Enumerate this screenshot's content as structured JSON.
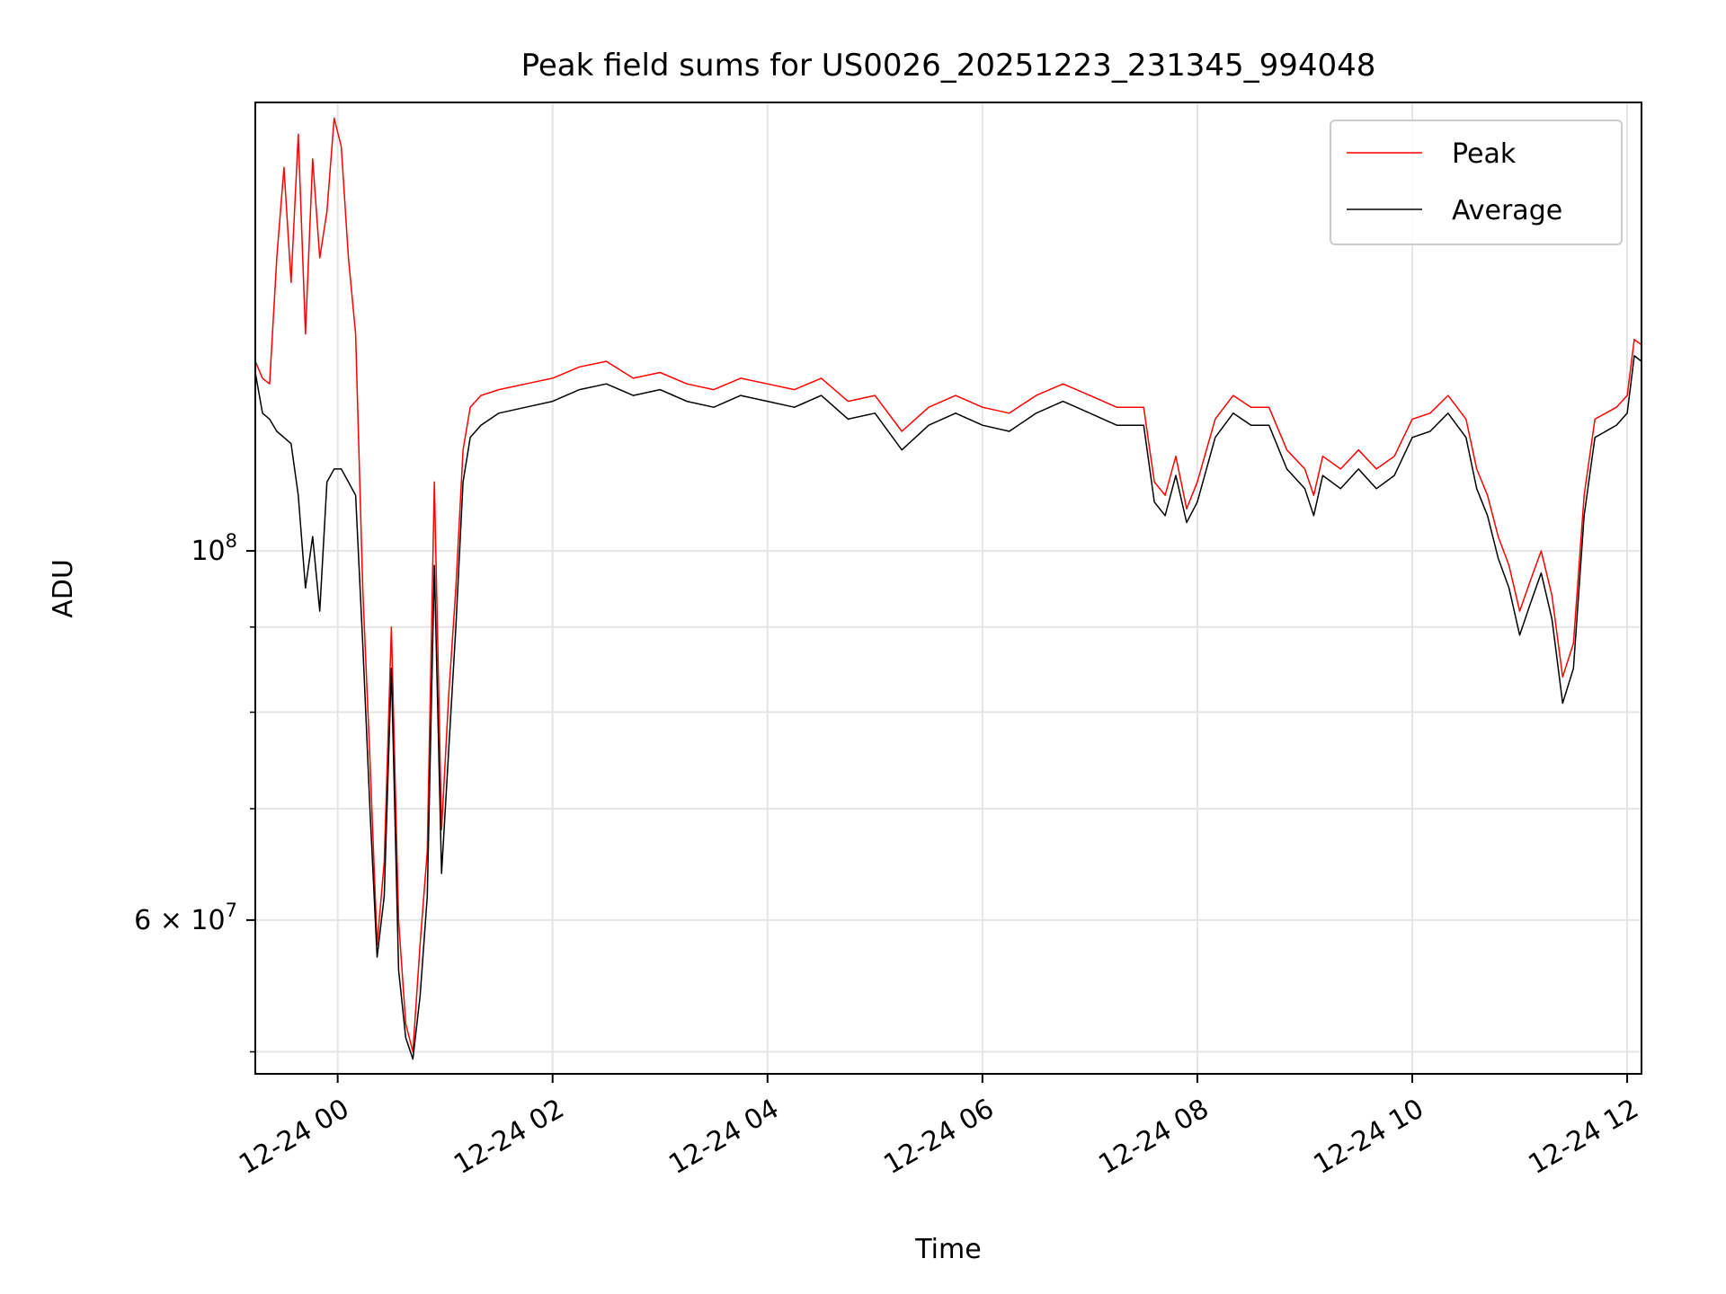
{
  "chart_data": {
    "type": "line",
    "title": "Peak field sums for US0026_20251223_231345_994048",
    "xlabel": "Time",
    "ylabel": "ADU",
    "x_scale": "time",
    "y_scale": "log",
    "xlim": [
      "12-23 23:14",
      "12-24 12:08"
    ],
    "ylim": [
      48500000,
      186000000
    ],
    "grid": true,
    "legend_position": "top-right",
    "x_ticks": [
      {
        "value": "12-24 00:00",
        "label": "12-24 00"
      },
      {
        "value": "12-24 02:00",
        "label": "12-24 02"
      },
      {
        "value": "12-24 04:00",
        "label": "12-24 04"
      },
      {
        "value": "12-24 06:00",
        "label": "12-24 06"
      },
      {
        "value": "12-24 08:00",
        "label": "12-24 08"
      },
      {
        "value": "12-24 10:00",
        "label": "12-24 10"
      },
      {
        "value": "12-24 12:00",
        "label": "12-24 12"
      }
    ],
    "y_major_ticks": [
      {
        "value": 60000000,
        "label_base": "6 × 10",
        "label_exp": "7"
      },
      {
        "value": 100000000,
        "label_base": "10",
        "label_exp": "8"
      }
    ],
    "y_minor_ticks": [
      50000000,
      70000000,
      80000000,
      90000000
    ],
    "series": [
      {
        "name": "Peak",
        "color": "#ff0000",
        "x": [
          "12-23 23:14",
          "12-23 23:18",
          "12-23 23:22",
          "12-23 23:26",
          "12-23 23:30",
          "12-23 23:34",
          "12-23 23:38",
          "12-23 23:42",
          "12-23 23:46",
          "12-23 23:50",
          "12-23 23:54",
          "12-23 23:58",
          "12-24 00:02",
          "12-24 00:06",
          "12-24 00:10",
          "12-24 00:14",
          "12-24 00:18",
          "12-24 00:22",
          "12-24 00:26",
          "12-24 00:30",
          "12-24 00:34",
          "12-24 00:38",
          "12-24 00:42",
          "12-24 00:46",
          "12-24 00:50",
          "12-24 00:54",
          "12-24 00:58",
          "12-24 01:02",
          "12-24 01:06",
          "12-24 01:10",
          "12-24 01:14",
          "12-24 01:20",
          "12-24 01:30",
          "12-24 01:45",
          "12-24 02:00",
          "12-24 02:15",
          "12-24 02:30",
          "12-24 02:45",
          "12-24 03:00",
          "12-24 03:15",
          "12-24 03:30",
          "12-24 03:45",
          "12-24 04:00",
          "12-24 04:15",
          "12-24 04:30",
          "12-24 04:45",
          "12-24 05:00",
          "12-24 05:15",
          "12-24 05:30",
          "12-24 05:45",
          "12-24 06:00",
          "12-24 06:15",
          "12-24 06:30",
          "12-24 06:45",
          "12-24 07:00",
          "12-24 07:15",
          "12-24 07:30",
          "12-24 07:36",
          "12-24 07:42",
          "12-24 07:48",
          "12-24 07:54",
          "12-24 08:00",
          "12-24 08:10",
          "12-24 08:20",
          "12-24 08:30",
          "12-24 08:40",
          "12-24 08:50",
          "12-24 09:00",
          "12-24 09:05",
          "12-24 09:10",
          "12-24 09:20",
          "12-24 09:30",
          "12-24 09:40",
          "12-24 09:50",
          "12-24 10:00",
          "12-24 10:10",
          "12-24 10:20",
          "12-24 10:30",
          "12-24 10:36",
          "12-24 10:42",
          "12-24 10:48",
          "12-24 10:54",
          "12-24 11:00",
          "12-24 11:06",
          "12-24 11:12",
          "12-24 11:18",
          "12-24 11:24",
          "12-24 11:30",
          "12-24 11:36",
          "12-24 11:42",
          "12-24 11:48",
          "12-24 11:54",
          "12-24 12:00",
          "12-24 12:04",
          "12-24 12:08"
        ],
        "values": [
          130000000,
          127000000,
          126000000,
          150000000,
          170000000,
          145000000,
          178000000,
          135000000,
          172000000,
          150000000,
          160000000,
          182000000,
          175000000,
          150000000,
          135000000,
          95000000,
          75000000,
          58000000,
          65000000,
          90000000,
          60000000,
          52000000,
          50000000,
          58000000,
          66000000,
          110000000,
          68000000,
          82000000,
          95000000,
          115000000,
          122000000,
          124000000,
          125000000,
          126000000,
          127000000,
          129000000,
          130000000,
          127000000,
          128000000,
          126000000,
          125000000,
          127000000,
          126000000,
          125000000,
          127000000,
          123000000,
          124000000,
          118000000,
          122000000,
          124000000,
          122000000,
          121000000,
          124000000,
          126000000,
          124000000,
          122000000,
          122000000,
          110000000,
          108000000,
          114000000,
          106000000,
          110000000,
          120000000,
          124000000,
          122000000,
          122000000,
          115000000,
          112000000,
          108000000,
          114000000,
          112000000,
          115000000,
          112000000,
          114000000,
          120000000,
          121000000,
          124000000,
          120000000,
          112000000,
          108000000,
          102000000,
          98000000,
          92000000,
          96000000,
          100000000,
          94000000,
          84000000,
          88000000,
          108000000,
          120000000,
          121000000,
          122000000,
          124000000,
          134000000,
          133000000
        ]
      },
      {
        "name": "Average",
        "color": "#000000",
        "x": [
          "12-23 23:14",
          "12-23 23:18",
          "12-23 23:22",
          "12-23 23:26",
          "12-23 23:30",
          "12-23 23:34",
          "12-23 23:38",
          "12-23 23:42",
          "12-23 23:46",
          "12-23 23:50",
          "12-23 23:54",
          "12-23 23:58",
          "12-24 00:02",
          "12-24 00:06",
          "12-24 00:10",
          "12-24 00:14",
          "12-24 00:18",
          "12-24 00:22",
          "12-24 00:26",
          "12-24 00:30",
          "12-24 00:34",
          "12-24 00:38",
          "12-24 00:42",
          "12-24 00:46",
          "12-24 00:50",
          "12-24 00:54",
          "12-24 00:58",
          "12-24 01:02",
          "12-24 01:06",
          "12-24 01:10",
          "12-24 01:14",
          "12-24 01:20",
          "12-24 01:30",
          "12-24 01:45",
          "12-24 02:00",
          "12-24 02:15",
          "12-24 02:30",
          "12-24 02:45",
          "12-24 03:00",
          "12-24 03:15",
          "12-24 03:30",
          "12-24 03:45",
          "12-24 04:00",
          "12-24 04:15",
          "12-24 04:30",
          "12-24 04:45",
          "12-24 05:00",
          "12-24 05:15",
          "12-24 05:30",
          "12-24 05:45",
          "12-24 06:00",
          "12-24 06:15",
          "12-24 06:30",
          "12-24 06:45",
          "12-24 07:00",
          "12-24 07:15",
          "12-24 07:30",
          "12-24 07:36",
          "12-24 07:42",
          "12-24 07:48",
          "12-24 07:54",
          "12-24 08:00",
          "12-24 08:10",
          "12-24 08:20",
          "12-24 08:30",
          "12-24 08:40",
          "12-24 08:50",
          "12-24 09:00",
          "12-24 09:05",
          "12-24 09:10",
          "12-24 09:20",
          "12-24 09:30",
          "12-24 09:40",
          "12-24 09:50",
          "12-24 10:00",
          "12-24 10:10",
          "12-24 10:20",
          "12-24 10:30",
          "12-24 10:36",
          "12-24 10:42",
          "12-24 10:48",
          "12-24 10:54",
          "12-24 11:00",
          "12-24 11:06",
          "12-24 11:12",
          "12-24 11:18",
          "12-24 11:24",
          "12-24 11:30",
          "12-24 11:36",
          "12-24 11:42",
          "12-24 11:48",
          "12-24 11:54",
          "12-24 12:00",
          "12-24 12:04",
          "12-24 12:08"
        ],
        "values": [
          128000000,
          121000000,
          120000000,
          118000000,
          117000000,
          116000000,
          108000000,
          95000000,
          102000000,
          92000000,
          110000000,
          112000000,
          112000000,
          110000000,
          108000000,
          88000000,
          70000000,
          57000000,
          62000000,
          85000000,
          56000000,
          51000000,
          49500000,
          54000000,
          62000000,
          98000000,
          64000000,
          76000000,
          90000000,
          110000000,
          117000000,
          119000000,
          121000000,
          122000000,
          123000000,
          125000000,
          126000000,
          124000000,
          125000000,
          123000000,
          122000000,
          124000000,
          123000000,
          122000000,
          124000000,
          120000000,
          121000000,
          115000000,
          119000000,
          121000000,
          119000000,
          118000000,
          121000000,
          123000000,
          121000000,
          119000000,
          119000000,
          107000000,
          105000000,
          111000000,
          104000000,
          107000000,
          117000000,
          121000000,
          119000000,
          119000000,
          112000000,
          109000000,
          105000000,
          111000000,
          109000000,
          112000000,
          109000000,
          111000000,
          117000000,
          118000000,
          121000000,
          117000000,
          109000000,
          105000000,
          99000000,
          95000000,
          89000000,
          93000000,
          97000000,
          91000000,
          81000000,
          85000000,
          105000000,
          117000000,
          118000000,
          119000000,
          121000000,
          131000000,
          130000000
        ]
      }
    ]
  }
}
